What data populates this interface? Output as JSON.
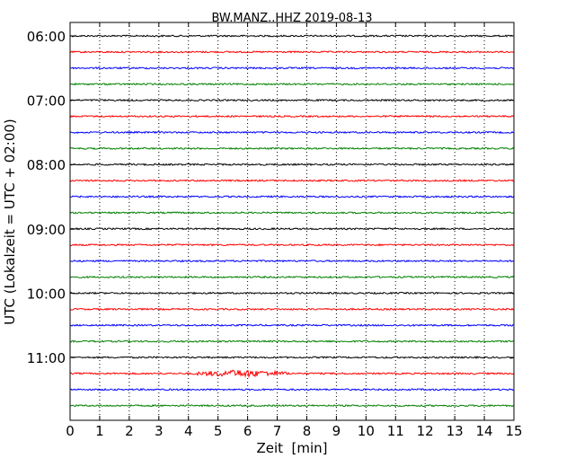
{
  "chart_data": {
    "type": "line",
    "title": "BW.MANZ..HHZ 2019-08-13",
    "xlabel": "Zeit  [min]",
    "ylabel": "UTC (Lokalzeit = UTC + 02:00)",
    "xlim": [
      0,
      15
    ],
    "x_ticks": [
      "0",
      "1",
      "2",
      "3",
      "4",
      "5",
      "6",
      "7",
      "8",
      "9",
      "10",
      "11",
      "12",
      "13",
      "14",
      "15"
    ],
    "y_tick_labels": [
      "06:00",
      "07:00",
      "08:00",
      "09:00",
      "10:00",
      "11:00"
    ],
    "grid": "vertical dotted",
    "colors": [
      "#000000",
      "#ff0000",
      "#0000ff",
      "#008000"
    ],
    "series": [
      {
        "start": "06:00",
        "color": "#000000"
      },
      {
        "start": "06:15",
        "color": "#ff0000"
      },
      {
        "start": "06:30",
        "color": "#0000ff"
      },
      {
        "start": "06:45",
        "color": "#008000"
      },
      {
        "start": "07:00",
        "color": "#000000"
      },
      {
        "start": "07:15",
        "color": "#ff0000"
      },
      {
        "start": "07:30",
        "color": "#0000ff"
      },
      {
        "start": "07:45",
        "color": "#008000"
      },
      {
        "start": "08:00",
        "color": "#000000"
      },
      {
        "start": "08:15",
        "color": "#ff0000"
      },
      {
        "start": "08:30",
        "color": "#0000ff"
      },
      {
        "start": "08:45",
        "color": "#008000"
      },
      {
        "start": "09:00",
        "color": "#000000"
      },
      {
        "start": "09:15",
        "color": "#ff0000"
      },
      {
        "start": "09:30",
        "color": "#0000ff"
      },
      {
        "start": "09:45",
        "color": "#008000"
      },
      {
        "start": "10:00",
        "color": "#000000"
      },
      {
        "start": "10:15",
        "color": "#ff0000"
      },
      {
        "start": "10:30",
        "color": "#0000ff"
      },
      {
        "start": "10:45",
        "color": "#008000"
      },
      {
        "start": "11:00",
        "color": "#000000"
      },
      {
        "start": "11:15",
        "color": "#ff0000",
        "event": {
          "from_min": 4.2,
          "to_min": 7.4,
          "peak_min": 5.8
        }
      },
      {
        "start": "11:30",
        "color": "#0000ff"
      },
      {
        "start": "11:45",
        "color": "#008000"
      }
    ]
  }
}
